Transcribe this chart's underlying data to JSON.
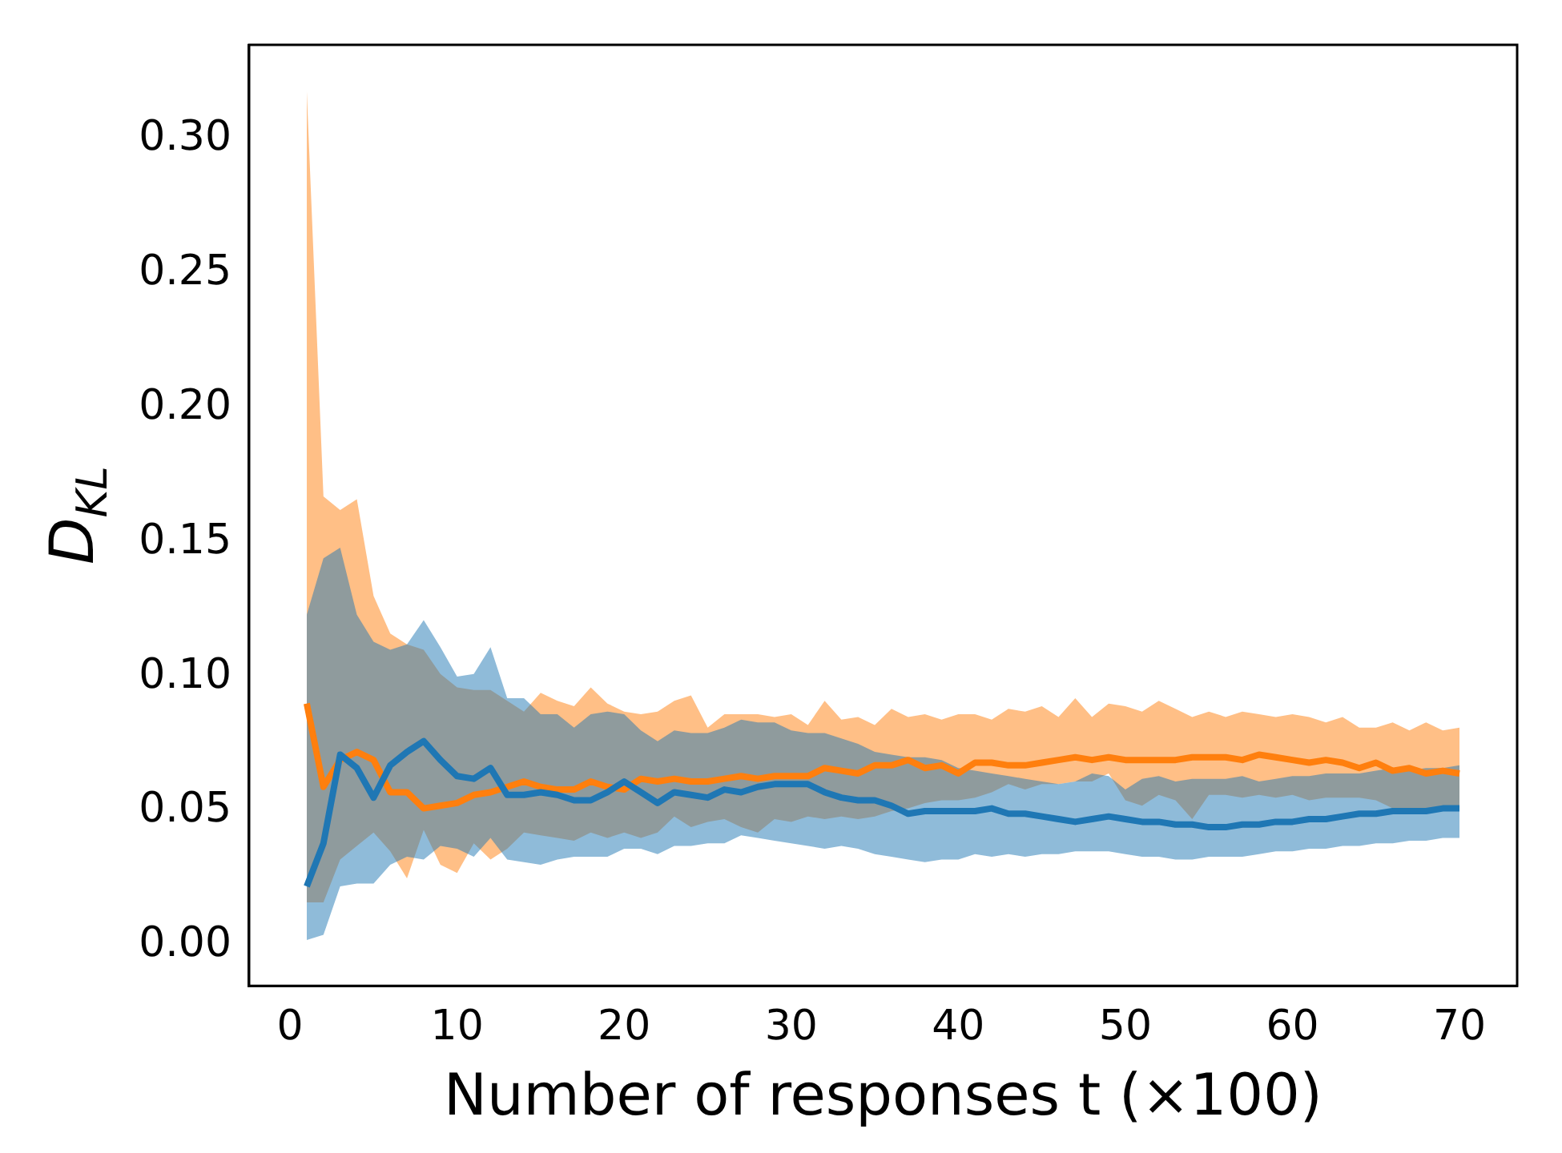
{
  "chart_data": {
    "type": "line",
    "xlabel": "Number of responses t (×100)",
    "ylabel": "D$_{KL}$",
    "x": [
      1,
      2,
      3,
      4,
      5,
      6,
      7,
      8,
      9,
      10,
      11,
      12,
      13,
      14,
      15,
      16,
      17,
      18,
      19,
      20,
      21,
      22,
      23,
      24,
      25,
      26,
      27,
      28,
      29,
      30,
      31,
      32,
      33,
      34,
      35,
      36,
      37,
      38,
      39,
      40,
      41,
      42,
      43,
      44,
      45,
      46,
      47,
      48,
      49,
      50,
      51,
      52,
      53,
      54,
      55,
      56,
      57,
      58,
      59,
      60,
      61,
      62,
      63,
      64,
      65,
      66,
      67,
      68,
      69,
      70
    ],
    "series": [
      {
        "color": "#1f77b4",
        "values": [
          0.022,
          0.038,
          0.071,
          0.066,
          0.055,
          0.067,
          0.072,
          0.076,
          0.069,
          0.063,
          0.062,
          0.066,
          0.056,
          0.056,
          0.057,
          0.056,
          0.054,
          0.054,
          0.057,
          0.061,
          0.057,
          0.053,
          0.057,
          0.056,
          0.055,
          0.058,
          0.057,
          0.059,
          0.06,
          0.06,
          0.06,
          0.057,
          0.055,
          0.054,
          0.054,
          0.052,
          0.049,
          0.05,
          0.05,
          0.05,
          0.05,
          0.051,
          0.049,
          0.049,
          0.048,
          0.047,
          0.046,
          0.047,
          0.048,
          0.047,
          0.046,
          0.046,
          0.045,
          0.045,
          0.044,
          0.044,
          0.045,
          0.045,
          0.046,
          0.046,
          0.047,
          0.047,
          0.048,
          0.049,
          0.049,
          0.05,
          0.05,
          0.05,
          0.051,
          0.051
        ],
        "upper": [
          0.123,
          0.144,
          0.148,
          0.123,
          0.113,
          0.11,
          0.112,
          0.121,
          0.111,
          0.1,
          0.101,
          0.111,
          0.092,
          0.092,
          0.086,
          0.086,
          0.081,
          0.086,
          0.087,
          0.086,
          0.08,
          0.076,
          0.08,
          0.079,
          0.079,
          0.081,
          0.084,
          0.083,
          0.083,
          0.08,
          0.079,
          0.079,
          0.077,
          0.075,
          0.072,
          0.071,
          0.07,
          0.07,
          0.069,
          0.066,
          0.065,
          0.064,
          0.063,
          0.062,
          0.061,
          0.06,
          0.061,
          0.064,
          0.063,
          0.058,
          0.062,
          0.063,
          0.061,
          0.062,
          0.062,
          0.062,
          0.063,
          0.061,
          0.062,
          0.063,
          0.063,
          0.064,
          0.064,
          0.064,
          0.065,
          0.066,
          0.065,
          0.066,
          0.066,
          0.067
        ],
        "lower": [
          0.002,
          0.004,
          0.022,
          0.023,
          0.023,
          0.03,
          0.033,
          0.032,
          0.037,
          0.036,
          0.033,
          0.04,
          0.032,
          0.031,
          0.03,
          0.032,
          0.033,
          0.033,
          0.033,
          0.036,
          0.036,
          0.034,
          0.037,
          0.037,
          0.038,
          0.038,
          0.041,
          0.04,
          0.039,
          0.038,
          0.037,
          0.036,
          0.037,
          0.036,
          0.034,
          0.033,
          0.032,
          0.031,
          0.032,
          0.032,
          0.034,
          0.033,
          0.034,
          0.033,
          0.034,
          0.034,
          0.035,
          0.035,
          0.035,
          0.034,
          0.033,
          0.033,
          0.032,
          0.032,
          0.033,
          0.033,
          0.033,
          0.034,
          0.035,
          0.035,
          0.036,
          0.036,
          0.037,
          0.037,
          0.038,
          0.038,
          0.039,
          0.039,
          0.04,
          0.04
        ]
      },
      {
        "color": "#ff7f0e",
        "values": [
          0.09,
          0.059,
          0.069,
          0.072,
          0.069,
          0.057,
          0.057,
          0.051,
          0.052,
          0.053,
          0.056,
          0.057,
          0.059,
          0.061,
          0.059,
          0.058,
          0.058,
          0.061,
          0.059,
          0.058,
          0.062,
          0.061,
          0.062,
          0.061,
          0.061,
          0.062,
          0.063,
          0.062,
          0.063,
          0.063,
          0.063,
          0.066,
          0.065,
          0.064,
          0.067,
          0.067,
          0.069,
          0.066,
          0.067,
          0.064,
          0.068,
          0.068,
          0.067,
          0.067,
          0.068,
          0.069,
          0.07,
          0.069,
          0.07,
          0.069,
          0.069,
          0.069,
          0.069,
          0.07,
          0.07,
          0.07,
          0.069,
          0.071,
          0.07,
          0.069,
          0.068,
          0.069,
          0.068,
          0.066,
          0.068,
          0.065,
          0.066,
          0.064,
          0.065,
          0.064
        ],
        "upper": [
          0.318,
          0.167,
          0.162,
          0.166,
          0.13,
          0.116,
          0.112,
          0.11,
          0.101,
          0.096,
          0.095,
          0.095,
          0.091,
          0.087,
          0.094,
          0.091,
          0.089,
          0.096,
          0.09,
          0.087,
          0.086,
          0.087,
          0.091,
          0.093,
          0.081,
          0.086,
          0.086,
          0.086,
          0.085,
          0.086,
          0.082,
          0.091,
          0.084,
          0.085,
          0.082,
          0.088,
          0.085,
          0.086,
          0.084,
          0.086,
          0.086,
          0.084,
          0.088,
          0.087,
          0.089,
          0.085,
          0.092,
          0.085,
          0.09,
          0.089,
          0.087,
          0.091,
          0.088,
          0.085,
          0.087,
          0.085,
          0.087,
          0.086,
          0.085,
          0.086,
          0.085,
          0.083,
          0.085,
          0.081,
          0.081,
          0.083,
          0.08,
          0.083,
          0.08,
          0.081
        ],
        "lower": [
          0.016,
          0.016,
          0.032,
          0.037,
          0.042,
          0.035,
          0.025,
          0.043,
          0.03,
          0.027,
          0.038,
          0.032,
          0.036,
          0.042,
          0.041,
          0.04,
          0.039,
          0.042,
          0.04,
          0.042,
          0.04,
          0.042,
          0.048,
          0.044,
          0.046,
          0.047,
          0.044,
          0.042,
          0.047,
          0.046,
          0.048,
          0.047,
          0.048,
          0.047,
          0.048,
          0.05,
          0.051,
          0.053,
          0.054,
          0.054,
          0.055,
          0.057,
          0.06,
          0.058,
          0.06,
          0.06,
          0.061,
          0.061,
          0.064,
          0.054,
          0.052,
          0.056,
          0.054,
          0.047,
          0.056,
          0.056,
          0.055,
          0.056,
          0.055,
          0.056,
          0.054,
          0.055,
          0.055,
          0.055,
          0.054,
          0.051,
          0.051,
          0.051,
          0.051,
          0.051
        ]
      }
    ],
    "xlim": [
      -2.45,
      73.45
    ],
    "xticks": [
      0,
      10,
      20,
      30,
      40,
      50,
      60,
      70
    ],
    "ylim": [
      -0.015,
      0.335
    ],
    "yticks": [
      {
        "value": 0,
        "label": "0.00"
      },
      {
        "value": 0.05,
        "label": "0.05"
      },
      {
        "value": 0.1,
        "label": "0.10"
      },
      {
        "value": 0.15,
        "label": "0.15"
      },
      {
        "value": 0.2,
        "label": "0.20"
      },
      {
        "value": 0.25,
        "label": "0.25"
      },
      {
        "value": 0.3,
        "label": "0.30"
      }
    ],
    "grid": false,
    "legend": false
  }
}
